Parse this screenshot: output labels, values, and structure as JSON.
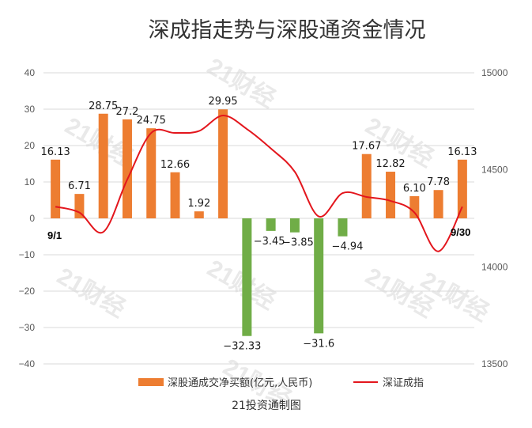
{
  "chart_data": {
    "type": "bar+line",
    "title": "深成指走势与深股通资金情况",
    "source": "21投资通制图",
    "watermark": "21财经",
    "start_label": "9/1",
    "end_label": "9/30",
    "y_left": {
      "min": -40,
      "max": 40,
      "step": 10,
      "ticks": [
        "40",
        "30",
        "20",
        "10",
        "0",
        "−10",
        "−20",
        "−30",
        "−40"
      ]
    },
    "y_right": {
      "min": 13500,
      "max": 15000,
      "step": 500,
      "ticks": [
        "15000",
        "14500",
        "14000",
        "13500"
      ]
    },
    "series": [
      {
        "name": "深股通成交净买额(亿元,人民币)",
        "type": "bar",
        "color": "#ed7d31",
        "negative_color": "#70ad47",
        "values": [
          16.13,
          6.71,
          28.75,
          27.2,
          24.75,
          12.66,
          1.92,
          29.95,
          -32.33,
          -3.45,
          -3.85,
          -31.6,
          -4.94,
          17.67,
          12.82,
          6.1,
          7.78,
          16.13
        ],
        "labels": [
          "16.13",
          "6.71",
          "28.75",
          "27.2",
          "24.75",
          "12.66",
          "1.92",
          "29.95",
          "−32.33",
          "−3.45",
          "−3.85",
          "−31.6",
          "−4.94",
          "17.67",
          "12.82",
          "6.10",
          "7.78",
          "16.13"
        ]
      },
      {
        "name": "深证成指",
        "type": "line",
        "color": "#e3161d",
        "axis": "right",
        "values": [
          14310,
          14280,
          14180,
          14450,
          14690,
          14690,
          14700,
          14780,
          14710,
          14610,
          14490,
          14260,
          14380,
          14360,
          14340,
          14280,
          14080,
          14310
        ]
      }
    ],
    "legend_position": "bottom"
  }
}
